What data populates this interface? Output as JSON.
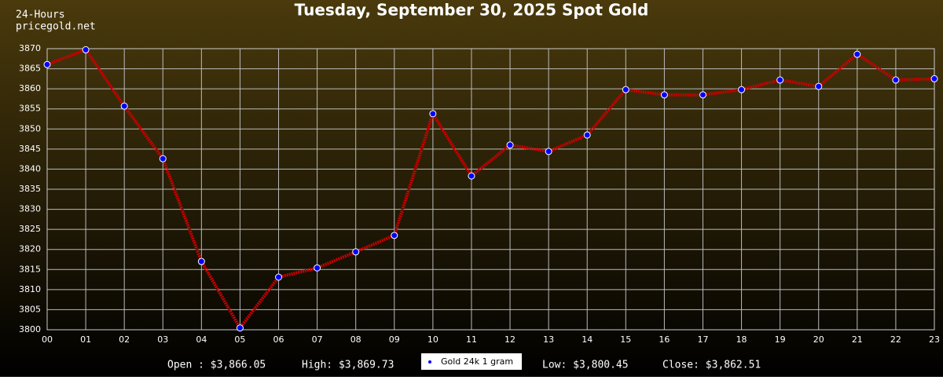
{
  "chart_data": {
    "type": "line",
    "title": "Tuesday, September 30, 2025 Spot Gold",
    "annotations": [
      "24-Hours",
      "pricegold.net"
    ],
    "categories": [
      "00",
      "01",
      "02",
      "03",
      "04",
      "05",
      "06",
      "07",
      "08",
      "09",
      "10",
      "11",
      "12",
      "13",
      "14",
      "15",
      "16",
      "17",
      "18",
      "19",
      "20",
      "21",
      "22",
      "23"
    ],
    "series": [
      {
        "name": "Gold 24k 1 gram",
        "color": "#cc0000",
        "marker_color": "#0000ff",
        "values": [
          3866.05,
          3869.73,
          3855.7,
          3842.6,
          3817,
          3800.45,
          3813.1,
          3815.4,
          3819.4,
          3823.5,
          3853.8,
          3838.3,
          3846,
          3844.4,
          3848.5,
          3859.8,
          3858.5,
          3858.5,
          3859.8,
          3862.2,
          3860.6,
          3868.6,
          3862.2,
          3862.51
        ]
      }
    ],
    "ylim": [
      3800,
      3870
    ],
    "yticks": [
      3800,
      3805,
      3810,
      3815,
      3820,
      3825,
      3830,
      3835,
      3840,
      3845,
      3850,
      3855,
      3860,
      3865,
      3870
    ],
    "grid": true,
    "legend": "bottom",
    "stats": [
      "Open : $3,866.05",
      "High: $3,869.73",
      "Low: $3,800.45",
      "Close: $3,862.51"
    ]
  }
}
